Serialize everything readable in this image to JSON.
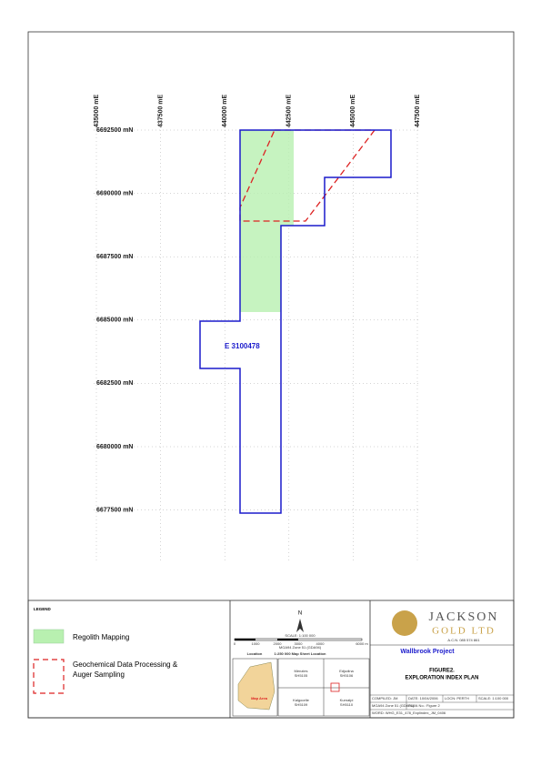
{
  "map": {
    "eastings": [
      "435000 mE",
      "437500 mE",
      "440000 mE",
      "442500 mE",
      "445000 mE",
      "447500 mE"
    ],
    "northings": [
      "6692500 mN",
      "6690000 mN",
      "6687500 mN",
      "6685000 mN",
      "6682500 mN",
      "6680000 mN",
      "6677500 mN"
    ],
    "tenement": "E 3100478"
  },
  "legend": {
    "title": "LEGEND",
    "items": [
      "Regolith Mapping",
      "Geochemical Data Processing &",
      "Auger Sampling"
    ]
  },
  "scale": {
    "north": "N",
    "scale": "SCALE: 1:100 000",
    "bar": [
      "0",
      "1000",
      "2000",
      "3000",
      "4000",
      "6000 m"
    ],
    "datum": "MGA94 Zone 51 (GDA94)",
    "sheet_title": "1:250 000 Map Sheet Location",
    "location": "Location",
    "map_area": "Map Area",
    "sheets": [
      [
        "Menzies",
        "SH5105"
      ],
      [
        "Edjudina",
        "SH5106"
      ],
      [
        "Kalgoorlie",
        "SH5109"
      ],
      [
        "Kurnalpi",
        "SH5110"
      ]
    ]
  },
  "title_block": {
    "company": "JACKSON",
    "company2": "GOLD LTD",
    "acn": "A.C.N. 085 574 861",
    "project": "Wallbrook Project",
    "figure": "FIGURE2.",
    "plan": "EXPLORATION INDEX PLAN",
    "rows": [
      [
        "COMPILED: JM",
        "DATE: 10/04/2006",
        "LOCN: PERTH",
        "SCALE: 1:100 000"
      ],
      [
        "MGA94 Zone 51 (GDA94)",
        "PLAN No.: Figure 2"
      ],
      [
        "WORD: WHG_E31_478_Explindex_JM_0406"
      ]
    ]
  }
}
